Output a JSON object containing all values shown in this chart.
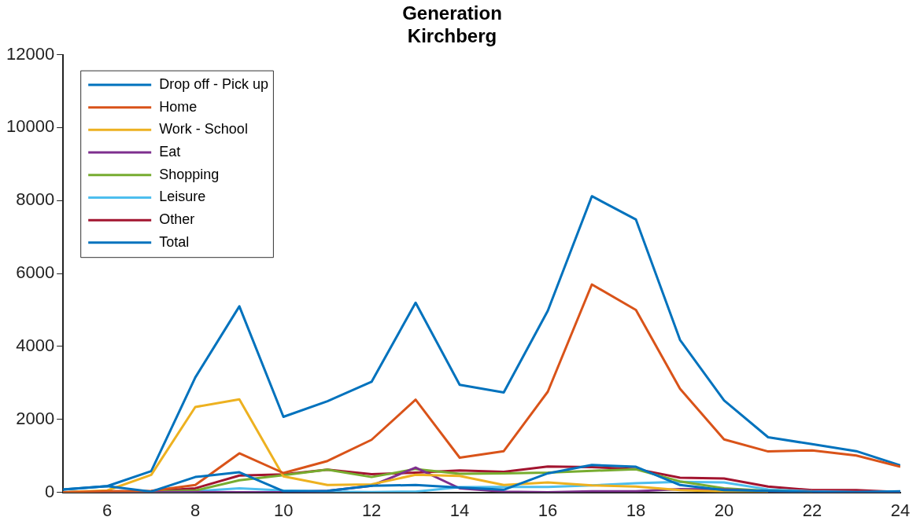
{
  "chart_data": {
    "type": "line",
    "title": "Generation\nKirchberg",
    "x": [
      5,
      6,
      7,
      8,
      9,
      10,
      11,
      12,
      13,
      14,
      15,
      16,
      17,
      18,
      19,
      20,
      21,
      22,
      23,
      24
    ],
    "xlim": [
      5,
      24
    ],
    "xticks": [
      6,
      8,
      10,
      12,
      14,
      16,
      18,
      20,
      22,
      24
    ],
    "ylim": [
      0,
      12000
    ],
    "yticks": [
      0,
      2000,
      4000,
      6000,
      8000,
      10000,
      12000
    ],
    "grid": false,
    "legend": "top left",
    "marker": "none",
    "line_style": "solid",
    "series": [
      {
        "name": "Drop off - Pick up",
        "color": "#0072bd",
        "values": [
          80,
          170,
          20,
          420,
          550,
          30,
          40,
          180,
          200,
          130,
          70,
          520,
          750,
          700,
          200,
          60,
          40,
          10,
          0,
          30
        ]
      },
      {
        "name": "Home",
        "color": "#d95319",
        "values": [
          0,
          30,
          40,
          200,
          1070,
          530,
          860,
          1440,
          2540,
          950,
          1130,
          2760,
          5700,
          5000,
          2840,
          1450,
          1120,
          1150,
          1010,
          700
        ]
      },
      {
        "name": "Work - School",
        "color": "#edb120",
        "values": [
          0,
          50,
          480,
          2340,
          2550,
          440,
          200,
          220,
          480,
          450,
          200,
          270,
          190,
          160,
          60,
          20,
          0,
          null,
          null,
          null
        ]
      },
      {
        "name": "Eat",
        "color": "#7e2f8e",
        "values": [
          0,
          0,
          0,
          10,
          0,
          0,
          40,
          180,
          680,
          110,
          20,
          0,
          30,
          30,
          90,
          80,
          30,
          10,
          0,
          0
        ]
      },
      {
        "name": "Shopping",
        "color": "#77ac30",
        "values": [
          0,
          10,
          20,
          50,
          330,
          470,
          620,
          420,
          640,
          510,
          520,
          540,
          590,
          630,
          300,
          110,
          40,
          10,
          null,
          null
        ]
      },
      {
        "name": "Leisure",
        "color": "#4dbeee",
        "values": [
          0,
          0,
          0,
          30,
          110,
          50,
          20,
          10,
          20,
          140,
          150,
          150,
          190,
          250,
          290,
          270,
          80,
          30,
          10,
          20
        ]
      },
      {
        "name": "Other",
        "color": "#a2142f",
        "values": [
          0,
          10,
          30,
          110,
          460,
          490,
          620,
          500,
          540,
          600,
          560,
          710,
          690,
          640,
          400,
          380,
          160,
          60,
          60,
          10
        ]
      },
      {
        "name": "Total",
        "color": "#0072bd",
        "values": [
          80,
          170,
          580,
          3150,
          5100,
          2070,
          2500,
          3030,
          5200,
          2950,
          2740,
          4980,
          8120,
          7480,
          4180,
          2520,
          1510,
          1320,
          1130,
          740
        ]
      }
    ]
  }
}
